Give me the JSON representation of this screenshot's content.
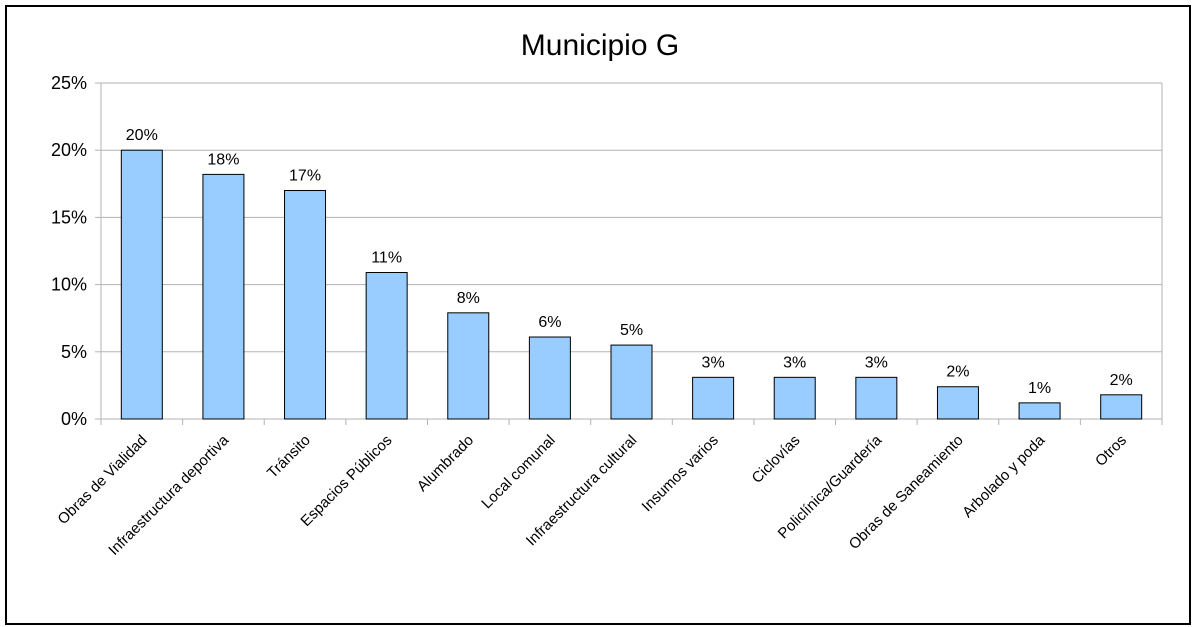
{
  "chart_data": {
    "type": "bar",
    "title": "Municipio G",
    "categories": [
      "Obras de Vialidad",
      "Infraestructura deportiva",
      "Tránsito",
      "Espacios Públicos",
      "Alumbrado",
      "Local comunal",
      "Infraestructura cultural",
      "Insumos varios",
      "Ciclovías",
      "Policlínica/Guardería",
      "Obras de Saneamiento",
      "Arbolado y poda",
      "Otros"
    ],
    "values": [
      0.2,
      0.182,
      0.17,
      0.109,
      0.079,
      0.061,
      0.055,
      0.031,
      0.031,
      0.031,
      0.024,
      0.012,
      0.018
    ],
    "data_labels": [
      "20%",
      "18%",
      "17%",
      "11%",
      "8%",
      "6%",
      "5%",
      "3%",
      "3%",
      "3%",
      "2%",
      "1%",
      "2%"
    ],
    "y_ticks": [
      0,
      0.05,
      0.1,
      0.15,
      0.2,
      0.25
    ],
    "y_tick_labels": [
      "0%",
      "5%",
      "10%",
      "15%",
      "20%",
      "25%"
    ],
    "ylim": [
      0,
      0.25
    ],
    "grid": true,
    "legend": "none",
    "colors": {
      "bar_fill": "#99CCFF",
      "bar_stroke": "#000000",
      "grid": "#B3B3B3",
      "axis": "#B3B3B3"
    }
  }
}
